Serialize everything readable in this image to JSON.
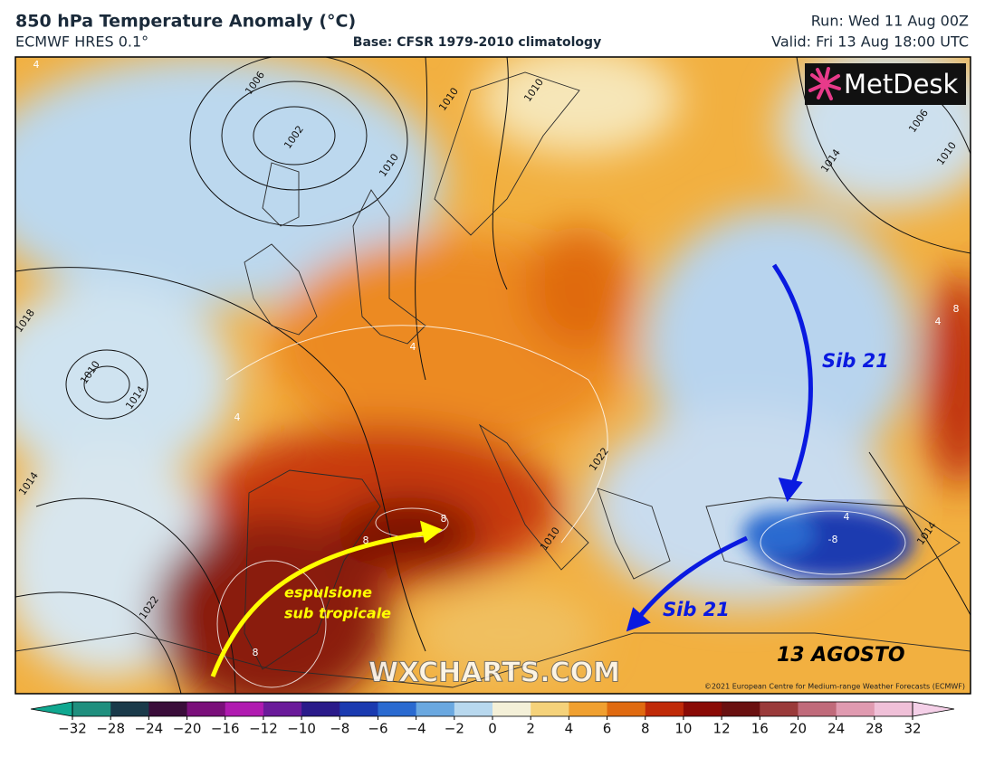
{
  "header": {
    "title": "850 hPa Temperature Anomaly (°C)",
    "model": "ECMWF HRES 0.1°",
    "base": "Base: CFSR 1979-2010 climatology",
    "run": "Run: Wed 11 Aug 00Z",
    "valid": "Valid: Fri 13 Aug 18:00 UTC"
  },
  "map": {
    "logo": "MetDesk",
    "watermark": "WXCHARTS.COM",
    "copyright": "©2021 European Centre for Medium-range Weather Forecasts (ECMWF)",
    "annotations": {
      "subtropical_1": "espulsione",
      "subtropical_2": "sub tropicale",
      "sib_north": "Sib 21",
      "sib_south": "Sib 21",
      "date": "13 AGOSTO"
    },
    "isobar_labels": [
      "1006",
      "1002",
      "1010",
      "1010",
      "1010",
      "1014",
      "1018",
      "1010",
      "1014",
      "1014",
      "1022",
      "1006",
      "1010",
      "1014",
      "1022",
      "1010"
    ],
    "anomaly_labels": [
      "4",
      "4",
      "4",
      "8",
      "8",
      "8",
      "-8",
      "4",
      "4",
      "8"
    ]
  },
  "colorbar": {
    "ticks": [
      {
        "value": -32,
        "label": "−32"
      },
      {
        "value": -28,
        "label": "−28"
      },
      {
        "value": -24,
        "label": "−24"
      },
      {
        "value": -20,
        "label": "−20"
      },
      {
        "value": -16,
        "label": "−16"
      },
      {
        "value": -12,
        "label": "−12"
      },
      {
        "value": -10,
        "label": "−10"
      },
      {
        "value": -8,
        "label": "−8"
      },
      {
        "value": -6,
        "label": "−6"
      },
      {
        "value": -4,
        "label": "−4"
      },
      {
        "value": -2,
        "label": "−2"
      },
      0,
      2,
      4,
      6,
      8,
      10,
      12,
      16,
      20,
      24,
      28,
      32
    ],
    "colors": [
      "#1f8f7e",
      "#1a3a4a",
      "#3a0d3a",
      "#7a0f7a",
      "#b01ab0",
      "#6a1a9a",
      "#2a1a8a",
      "#1a3ab0",
      "#2a6ad0",
      "#6aa8e0",
      "#b8d8ee",
      "#f4f0d8",
      "#f5d27a",
      "#f0a030",
      "#e06a10",
      "#c02a08",
      "#8a0a05",
      "#6a1010",
      "#9a3a3a",
      "#c06a7a",
      "#e09ab0",
      "#f0c0d8"
    ],
    "low_color": "#10a890",
    "high_color": "#f5d0e8"
  }
}
